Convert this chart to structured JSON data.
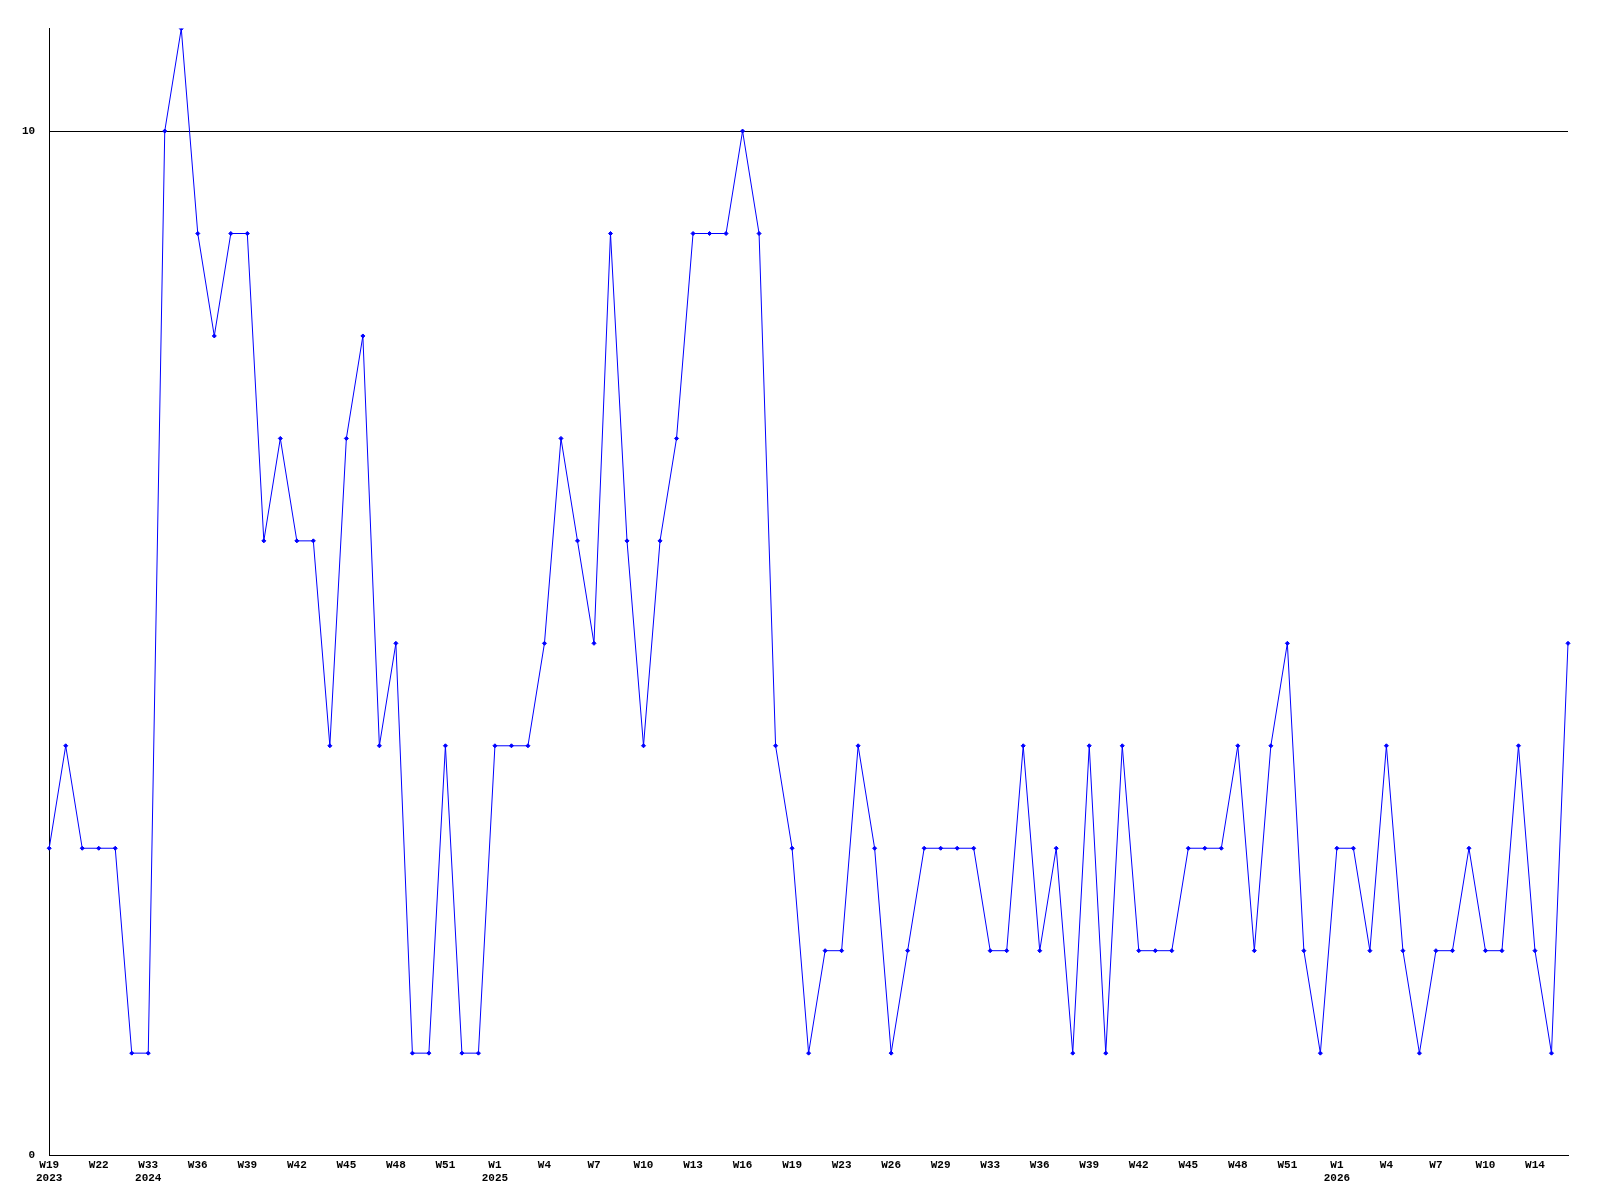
{
  "chart_data": {
    "type": "line",
    "categories": [
      "W19\n2023",
      null,
      null,
      "W22",
      null,
      null,
      "W33\n2024",
      null,
      null,
      "W36",
      null,
      null,
      "W39",
      null,
      null,
      "W42",
      null,
      null,
      "W45",
      null,
      null,
      "W48",
      null,
      null,
      "W51",
      null,
      null,
      "W1\n2025",
      null,
      null,
      "W4",
      null,
      null,
      "W7",
      null,
      null,
      "W10",
      null,
      null,
      "W13",
      null,
      null,
      "W16",
      null,
      null,
      "W19",
      null,
      null,
      "W23",
      null,
      null,
      "W26",
      null,
      null,
      "W29",
      null,
      null,
      "W33",
      null,
      null,
      "W36",
      null,
      null,
      "W39",
      null,
      null,
      "W42",
      null,
      null,
      "W45",
      null,
      null,
      "W48",
      null,
      null,
      "W51",
      null,
      null,
      "W1\n2026",
      null,
      null,
      "W4",
      null,
      null,
      "W7",
      null,
      null,
      "W10",
      null,
      null,
      "W14",
      null,
      null
    ],
    "series": [
      {
        "color": "#0000ff",
        "values": [
          3,
          4,
          3,
          3,
          3,
          1,
          1,
          10,
          11,
          9,
          8,
          9,
          9,
          6,
          7,
          6,
          6,
          4,
          7,
          8,
          4,
          5,
          1,
          1,
          4,
          1,
          1,
          4,
          4,
          4,
          5,
          7,
          6,
          5,
          9,
          6,
          4,
          6,
          7,
          9,
          9,
          9,
          10,
          9,
          4,
          3,
          1,
          2,
          2,
          4,
          3,
          1,
          2,
          3,
          3,
          3,
          3,
          2,
          2,
          4,
          2,
          3,
          1,
          4,
          1,
          4,
          2,
          2,
          2,
          3,
          3,
          3,
          4,
          2,
          4,
          5,
          2,
          1,
          3,
          3,
          2,
          4,
          2,
          1,
          2,
          2,
          3,
          2,
          2,
          4,
          2,
          1,
          5
        ]
      }
    ],
    "ylim": [
      0,
      11
    ],
    "yticks": [
      0,
      10
    ],
    "grid": "y",
    "marker": "diamond",
    "line_style": "solid",
    "legend": false
  }
}
